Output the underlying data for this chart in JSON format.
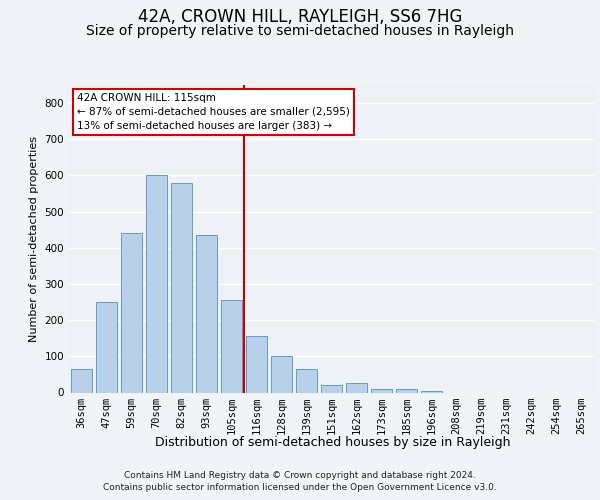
{
  "title": "42A, CROWN HILL, RAYLEIGH, SS6 7HG",
  "subtitle": "Size of property relative to semi-detached houses in Rayleigh",
  "xlabel": "Distribution of semi-detached houses by size in Rayleigh",
  "ylabel": "Number of semi-detached properties",
  "categories": [
    "36sqm",
    "47sqm",
    "59sqm",
    "70sqm",
    "82sqm",
    "93sqm",
    "105sqm",
    "116sqm",
    "128sqm",
    "139sqm",
    "151sqm",
    "162sqm",
    "173sqm",
    "185sqm",
    "196sqm",
    "208sqm",
    "219sqm",
    "231sqm",
    "242sqm",
    "254sqm",
    "265sqm"
  ],
  "values": [
    65,
    250,
    440,
    600,
    580,
    435,
    255,
    155,
    100,
    65,
    22,
    25,
    10,
    10,
    5,
    0,
    0,
    0,
    0,
    0,
    0
  ],
  "bar_color": "#b8d0e8",
  "bar_edge_color": "#6699cc",
  "vline_color": "#cc0000",
  "vline_pos": 6.5,
  "annotation_title": "42A CROWN HILL: 115sqm",
  "annotation_line1": "← 87% of semi-detached houses are smaller (2,595)",
  "annotation_line2": "13% of semi-detached houses are larger (383) →",
  "annotation_box_color": "#ffffff",
  "annotation_box_edge": "#cc0000",
  "footer1": "Contains HM Land Registry data © Crown copyright and database right 2024.",
  "footer2": "Contains public sector information licensed under the Open Government Licence v3.0.",
  "ylim": [
    0,
    850
  ],
  "yticks": [
    0,
    100,
    200,
    300,
    400,
    500,
    600,
    700,
    800
  ],
  "bg_color": "#eef2f7",
  "grid_color": "#ffffff",
  "title_fontsize": 12,
  "subtitle_fontsize": 10,
  "ylabel_fontsize": 8,
  "xlabel_fontsize": 9,
  "tick_fontsize": 7.5,
  "footer_fontsize": 6.5
}
